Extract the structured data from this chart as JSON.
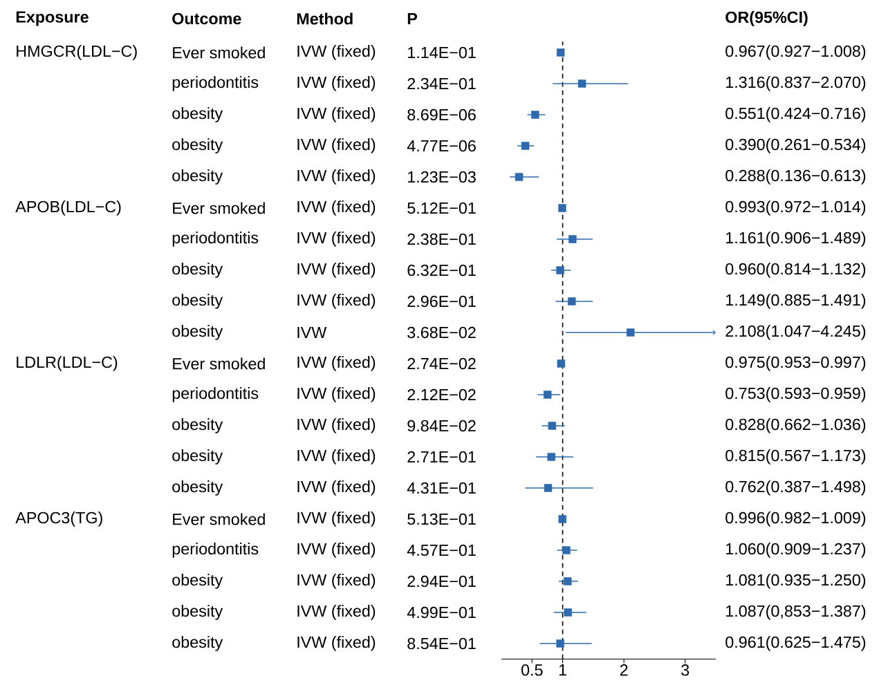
{
  "chart_data": {
    "type": "scatter",
    "orientation": "horizontal",
    "marker": "square",
    "color": "#2e6aad",
    "categories": [
      null,
      null,
      null,
      null,
      null,
      null,
      null,
      null,
      null,
      null,
      null,
      null,
      null,
      null,
      null,
      null,
      null,
      null,
      null,
      null
    ],
    "values": [
      0.967,
      1.316,
      0.551,
      0.39,
      0.288,
      0.993,
      1.161,
      0.96,
      1.149,
      2.108,
      0.975,
      0.753,
      0.828,
      0.815,
      0.762,
      0.996,
      1.06,
      1.081,
      1.087,
      0.961
    ],
    "errors": [
      [
        0.927,
        1.008
      ],
      [
        0.837,
        2.07
      ],
      [
        0.424,
        0.716
      ],
      [
        0.261,
        0.534
      ],
      [
        0.136,
        0.613
      ],
      null,
      [
        0.906,
        1.489
      ],
      [
        0.814,
        1.132
      ],
      [
        0.885,
        1.491
      ],
      [
        1.047,
        3.5
      ],
      null,
      [
        0.593,
        0.959
      ],
      [
        0.662,
        1.036
      ],
      [
        0.567,
        1.173
      ],
      [
        0.387,
        1.498
      ],
      [
        0.982,
        1.009
      ],
      [
        0.909,
        1.237
      ],
      [
        0.935,
        1.25
      ],
      [
        0.853,
        1.387
      ],
      [
        0.625,
        1.475
      ]
    ],
    "value_labels": [
      "0.967(0.927−1.008)",
      "1.316(0.837−2.070)",
      "0.551(0.424−0.716)",
      "0.390(0.261−0.534)",
      "0.288(0.136−0.613)",
      "0.993(0.972−1.014)",
      "1.161(0.906−1.489)",
      "0.960(0.814−1.132)",
      "1.149(0.885−1.491)",
      "2.108(1.047−4.245)",
      "0.975(0.953−0.997)",
      "0.753(0.593−0.959)",
      "0.828(0.662−1.036)",
      "0.815(0.567−1.173)",
      "0.762(0.387−1.498)",
      "0.996(0.982−1.009)",
      "1.060(0.909−1.237)",
      "1.081(0.935−1.250)",
      "1.087(0,853−1.387)",
      "0.961(0.625−1.475)"
    ],
    "xlim": [
      0,
      3.5
    ],
    "xticks": [
      0.5,
      1,
      2,
      3
    ],
    "ref_lines": [
      {
        "axis": "x",
        "value": 1,
        "line_style": "dashed"
      }
    ],
    "annotations": [
      "Exposure",
      "Outcome",
      "Method",
      "P",
      "OR(95%CI)",
      "HMGCR(LDL−C)",
      "APOB(LDL−C)",
      "LDLR(LDL−C)",
      "APOC3(TG)",
      "IVW (fixed)",
      "IVW (fixed)",
      "IVW (fixed)",
      "IVW (fixed)",
      "IVW (fixed)",
      "IVW (fixed)",
      "IVW (fixed)",
      "IVW (fixed)",
      "IVW (fixed)",
      "IVW",
      "IVW (fixed)",
      "IVW (fixed)",
      "IVW (fixed)",
      "IVW (fixed)",
      "IVW (fixed)",
      "IVW (fixed)",
      "IVW (fixed)",
      "IVW (fixed)",
      "IVW (fixed)",
      "IVW (fixed)",
      "1.14E−01",
      "2.34E−01",
      "8.69E−06",
      "4.77E−06",
      "1.23E−03",
      "5.12E−01",
      "2.38E−01",
      "6.32E−01",
      "2.96E−01",
      "3.68E−02",
      "2.74E−02",
      "2.12E−02",
      "9.84E−02",
      "2.71E−01",
      "4.31E−01",
      "5.13E−01",
      "4.57E−01",
      "2.94E−01",
      "4.99E−01",
      "8.54E−01",
      "Ever smoked",
      "periodontitis",
      "obesity",
      "obesity",
      "obesity",
      "Ever smoked",
      "periodontitis",
      "obesity",
      "obesity",
      "obesity",
      "Ever smoked",
      "periodontitis",
      "obesity",
      "obesity",
      "obesity",
      "Ever smoked",
      "periodontitis",
      "obesity",
      "obesity",
      "obesity"
    ]
  }
}
